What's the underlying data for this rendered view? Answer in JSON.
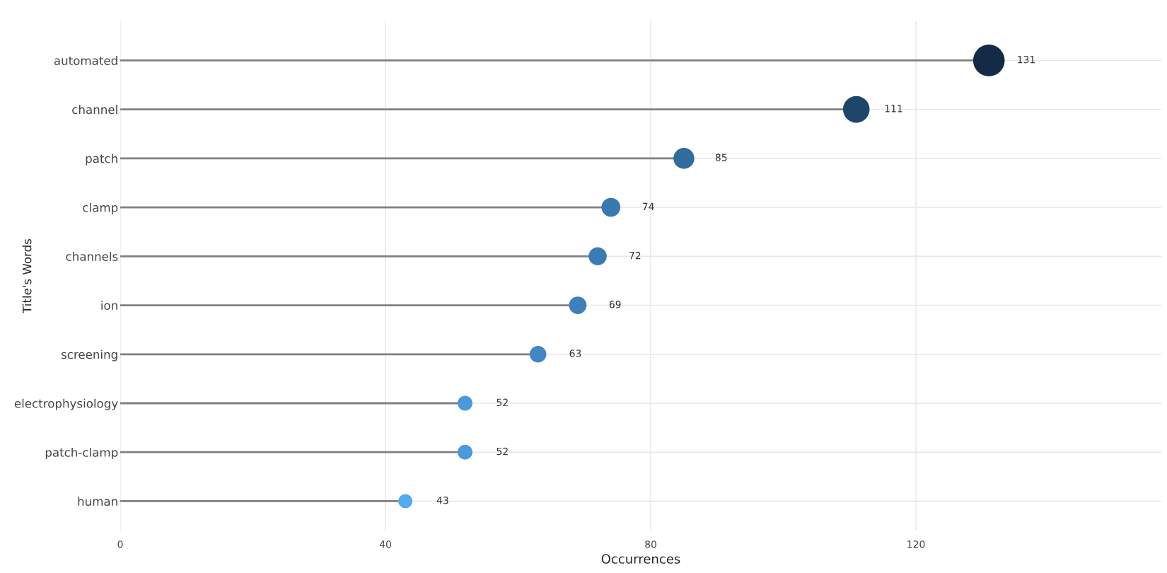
{
  "chart_data": {
    "type": "lollipop",
    "orientation": "horizontal",
    "xlabel": "Occurrences",
    "ylabel": "Title's Words",
    "categories": [
      "automated",
      "channel",
      "patch",
      "clamp",
      "channels",
      "ion",
      "screening",
      "electrophysiology",
      "patch-clamp",
      "human"
    ],
    "values": [
      131,
      111,
      85,
      74,
      72,
      69,
      63,
      52,
      52,
      43
    ],
    "sizes": [
      1,
      0.71,
      0.44,
      0.36,
      0.33,
      0.31,
      0.28,
      0.22,
      0.22,
      0.2
    ],
    "colors": [
      "#142b47",
      "#1f4568",
      "#336b9c",
      "#3a78b0",
      "#3b7bb5",
      "#3e80bb",
      "#4286c3",
      "#4b98db",
      "#4b98db",
      "#54a9ef"
    ],
    "xlim": [
      0,
      157
    ],
    "xticks": [
      0,
      40,
      80,
      120
    ],
    "grid": true,
    "data_labels": true
  }
}
